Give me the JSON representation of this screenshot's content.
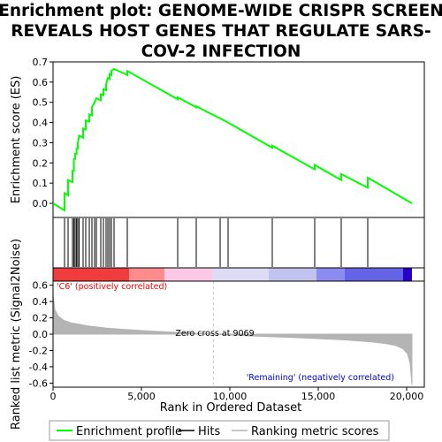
{
  "title_lines": [
    "Enrichment plot: GENOME-WIDE CRISPR SCREEN",
    "REVEALS HOST GENES THAT REGULATE SARS-",
    "COV-2 INFECTION"
  ],
  "chart_data": {
    "type": "line",
    "ylabel_top": "Enrichment score (ES)",
    "ylabel_bottom": "Ranked list metric (Signal2Noise)",
    "xlabel": "Rank in Ordered Dataset",
    "x_range": [
      0,
      21000
    ],
    "x_ticks": [
      0,
      5000,
      10000,
      15000,
      20000
    ],
    "x_tick_labels": [
      "0",
      "5,000",
      "10,000",
      "15,000",
      "20,000"
    ],
    "es_ylim": [
      -0.07,
      0.7
    ],
    "es_ticks": [
      0.0,
      0.1,
      0.2,
      0.3,
      0.4,
      0.5,
      0.6,
      0.7
    ],
    "es_tick_labels": [
      "0.0",
      "0.1",
      "0.2",
      "0.3",
      "0.4",
      "0.5",
      "0.6",
      "0.7"
    ],
    "metric_ylim": [
      -0.65,
      0.65
    ],
    "metric_ticks": [
      -0.6,
      -0.4,
      -0.2,
      0.0,
      0.2,
      0.4,
      0.6
    ],
    "metric_tick_labels": [
      "-0.6",
      "-0.4",
      "-0.2",
      "0.0",
      "0.2",
      "0.4",
      "0.6"
    ],
    "total_genes": 20300,
    "zero_cross": 9069,
    "zero_cross_label": "Zero cross at 9069",
    "pos_label": "'C6' (positively correlated)",
    "neg_label": "'Remaining' (negatively correlated)",
    "hits": [
      650,
      850,
      1100,
      1180,
      1250,
      1330,
      1400,
      1480,
      1700,
      1850,
      2050,
      2200,
      2350,
      2450,
      2700,
      2850,
      3000,
      3100,
      3200,
      3300,
      3450,
      4200,
      7050,
      8100,
      9450,
      9900,
      12400,
      14800,
      16300,
      17800
    ],
    "es_curve": [
      [
        0,
        0.0
      ],
      [
        650,
        -0.035
      ],
      [
        651,
        0.05
      ],
      [
        850,
        0.04
      ],
      [
        851,
        0.115
      ],
      [
        1100,
        0.105
      ],
      [
        1101,
        0.16
      ],
      [
        1180,
        0.16
      ],
      [
        1181,
        0.22
      ],
      [
        1250,
        0.22
      ],
      [
        1251,
        0.245
      ],
      [
        1330,
        0.245
      ],
      [
        1331,
        0.27
      ],
      [
        1400,
        0.27
      ],
      [
        1401,
        0.3
      ],
      [
        1480,
        0.335
      ],
      [
        1700,
        0.325
      ],
      [
        1701,
        0.37
      ],
      [
        1850,
        0.365
      ],
      [
        1851,
        0.41
      ],
      [
        2050,
        0.405
      ],
      [
        2051,
        0.44
      ],
      [
        2200,
        0.435
      ],
      [
        2201,
        0.475
      ],
      [
        2350,
        0.5
      ],
      [
        2450,
        0.52
      ],
      [
        2700,
        0.51
      ],
      [
        2701,
        0.54
      ],
      [
        2850,
        0.535
      ],
      [
        2851,
        0.565
      ],
      [
        3000,
        0.56
      ],
      [
        3001,
        0.59
      ],
      [
        3100,
        0.62
      ],
      [
        3200,
        0.615
      ],
      [
        3201,
        0.64
      ],
      [
        3300,
        0.635
      ],
      [
        3301,
        0.655
      ],
      [
        3450,
        0.665
      ],
      [
        4200,
        0.635
      ],
      [
        4201,
        0.655
      ],
      [
        7050,
        0.515
      ],
      [
        7051,
        0.525
      ],
      [
        8100,
        0.475
      ],
      [
        8101,
        0.48
      ],
      [
        9450,
        0.42
      ],
      [
        9900,
        0.4
      ],
      [
        12400,
        0.275
      ],
      [
        12401,
        0.285
      ],
      [
        14800,
        0.168
      ],
      [
        14801,
        0.19
      ],
      [
        16300,
        0.115
      ],
      [
        16301,
        0.145
      ],
      [
        17800,
        0.077
      ],
      [
        17801,
        0.127
      ],
      [
        20300,
        0.0
      ]
    ],
    "metric_curve": [
      [
        0,
        0.48
      ],
      [
        100,
        0.3
      ],
      [
        300,
        0.22
      ],
      [
        600,
        0.17
      ],
      [
        1000,
        0.14
      ],
      [
        1500,
        0.12
      ],
      [
        2000,
        0.1
      ],
      [
        3000,
        0.075
      ],
      [
        4000,
        0.058
      ],
      [
        5000,
        0.045
      ],
      [
        6000,
        0.032
      ],
      [
        7000,
        0.022
      ],
      [
        8000,
        0.012
      ],
      [
        9069,
        0.0
      ],
      [
        10000,
        -0.01
      ],
      [
        11000,
        -0.02
      ],
      [
        12000,
        -0.028
      ],
      [
        13000,
        -0.036
      ],
      [
        14000,
        -0.045
      ],
      [
        15000,
        -0.055
      ],
      [
        16000,
        -0.065
      ],
      [
        17000,
        -0.078
      ],
      [
        18000,
        -0.095
      ],
      [
        18800,
        -0.115
      ],
      [
        19400,
        -0.14
      ],
      [
        19800,
        -0.18
      ],
      [
        20050,
        -0.24
      ],
      [
        20200,
        -0.36
      ],
      [
        20300,
        -0.62
      ]
    ],
    "heat_segments": [
      {
        "from": 0,
        "to": 4300,
        "color": "#f03c3c"
      },
      {
        "from": 4300,
        "to": 6300,
        "color": "#ff8c8c"
      },
      {
        "from": 6300,
        "to": 9000,
        "color": "#ffc8e6"
      },
      {
        "from": 9000,
        "to": 12200,
        "color": "#dcdcf5"
      },
      {
        "from": 12200,
        "to": 14900,
        "color": "#c3c3f0"
      },
      {
        "from": 14900,
        "to": 16500,
        "color": "#8c8cf0"
      },
      {
        "from": 16500,
        "to": 19800,
        "color": "#6464e6"
      },
      {
        "from": 19800,
        "to": 20300,
        "color": "#2800c8"
      }
    ],
    "colors": {
      "es_line": "#00ff00",
      "hit_line": "#000000",
      "metric_fill": "#b4b4b4",
      "pos_text": "#ff0000",
      "neg_text": "#0000cc",
      "zero_line": "#c8c8c8"
    },
    "legend": {
      "entries": [
        "Enrichment profile",
        "Hits",
        "Ranking metric scores"
      ],
      "placement": "bottom"
    }
  }
}
